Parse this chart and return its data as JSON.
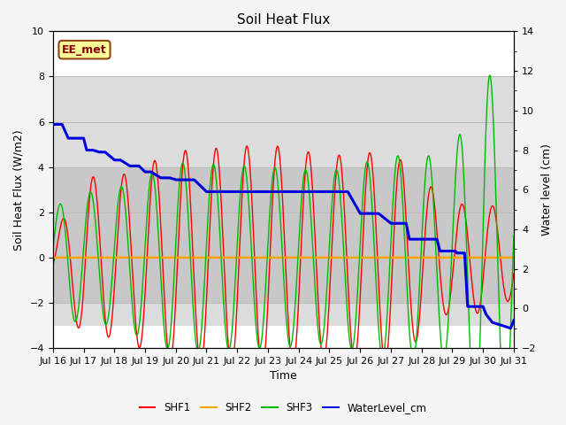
{
  "title": "Soil Heat Flux",
  "xlabel": "Time",
  "ylabel_left": "Soil Heat Flux (W/m2)",
  "ylabel_right": "Water level (cm)",
  "annotation_text": "EE_met",
  "annotation_bg": "#FFFF99",
  "annotation_border": "#8B4513",
  "left_ylim": [
    -4,
    10
  ],
  "right_ylim": [
    -2,
    14
  ],
  "left_yticks": [
    -4,
    -2,
    0,
    2,
    4,
    6,
    8,
    10
  ],
  "right_yticks": [
    -2,
    0,
    2,
    4,
    6,
    8,
    10,
    12,
    14
  ],
  "band_outer_low": -3,
  "band_outer_high": 8,
  "band_inner_low": -2,
  "band_inner_high": 4,
  "colors": {
    "SHF1": "#FF0000",
    "SHF2": "#FFA500",
    "SHF3": "#00BB00",
    "WaterLevel": "#0000DD"
  },
  "legend_labels": [
    "SHF1",
    "SHF2",
    "SHF3",
    "WaterLevel_cm"
  ],
  "grid_color": "#BBBBBB",
  "band_outer_color": "#DCDCDC",
  "band_inner_color": "#C8C8C8",
  "bg_color": "#FFFFFF",
  "fig_bg": "#F5F5F5",
  "wl_days": [
    0.0,
    0.1,
    0.3,
    0.5,
    0.8,
    1.0,
    1.1,
    1.3,
    1.5,
    1.7,
    2.0,
    2.2,
    2.5,
    2.8,
    3.0,
    3.2,
    3.5,
    3.8,
    4.0,
    4.3,
    4.6,
    5.0,
    5.3,
    5.6,
    6.0,
    6.3,
    6.6,
    7.0,
    7.3,
    7.6,
    8.0,
    8.3,
    8.6,
    9.0,
    9.3,
    9.6,
    10.0,
    10.3,
    10.6,
    11.0,
    11.3,
    11.5,
    11.6,
    11.65,
    11.7,
    11.75,
    11.8,
    12.0,
    12.3,
    12.5,
    12.6,
    12.65,
    12.7,
    12.8,
    13.0,
    13.1,
    13.15,
    13.2,
    13.3,
    13.4,
    13.5,
    13.6,
    13.7,
    13.8,
    13.9,
    14.0,
    14.05,
    14.1,
    14.2,
    14.3,
    14.5,
    14.7,
    14.9,
    15.0
  ],
  "wl_vals": [
    9.3,
    9.3,
    9.3,
    8.6,
    8.6,
    8.6,
    8.0,
    8.0,
    7.9,
    7.9,
    7.5,
    7.5,
    7.2,
    7.2,
    6.9,
    6.9,
    6.6,
    6.6,
    6.5,
    6.5,
    6.5,
    5.9,
    5.9,
    5.9,
    5.9,
    5.9,
    5.9,
    5.9,
    5.9,
    5.9,
    5.9,
    5.9,
    5.9,
    5.9,
    5.9,
    5.9,
    4.8,
    4.8,
    4.8,
    4.3,
    4.3,
    4.3,
    3.5,
    3.5,
    3.5,
    3.5,
    3.5,
    3.5,
    3.5,
    3.5,
    2.9,
    2.9,
    2.9,
    2.9,
    2.9,
    2.9,
    2.8,
    2.8,
    2.8,
    2.8,
    0.1,
    0.1,
    0.1,
    0.1,
    0.1,
    0.1,
    -0.1,
    -0.3,
    -0.5,
    -0.7,
    -0.8,
    -0.9,
    -1.0,
    -0.6
  ],
  "shf1_amp_days": [
    0,
    1,
    2,
    4,
    7,
    9,
    11,
    13,
    14,
    15
  ],
  "shf1_amp_vals": [
    0.8,
    3.6,
    3.5,
    4.7,
    5.0,
    4.5,
    4.7,
    2.3,
    2.5,
    1.8
  ],
  "shf3_amp_days": [
    0,
    0.5,
    2,
    4,
    7,
    9,
    11,
    12,
    13,
    14,
    15
  ],
  "shf3_amp_vals": [
    2.0,
    2.8,
    3.0,
    4.2,
    4.0,
    3.8,
    4.5,
    4.5,
    4.5,
    8.5,
    6.5
  ],
  "shf1_phase": -0.4,
  "shf3_phase": 0.15,
  "shf_freq": 1.0
}
